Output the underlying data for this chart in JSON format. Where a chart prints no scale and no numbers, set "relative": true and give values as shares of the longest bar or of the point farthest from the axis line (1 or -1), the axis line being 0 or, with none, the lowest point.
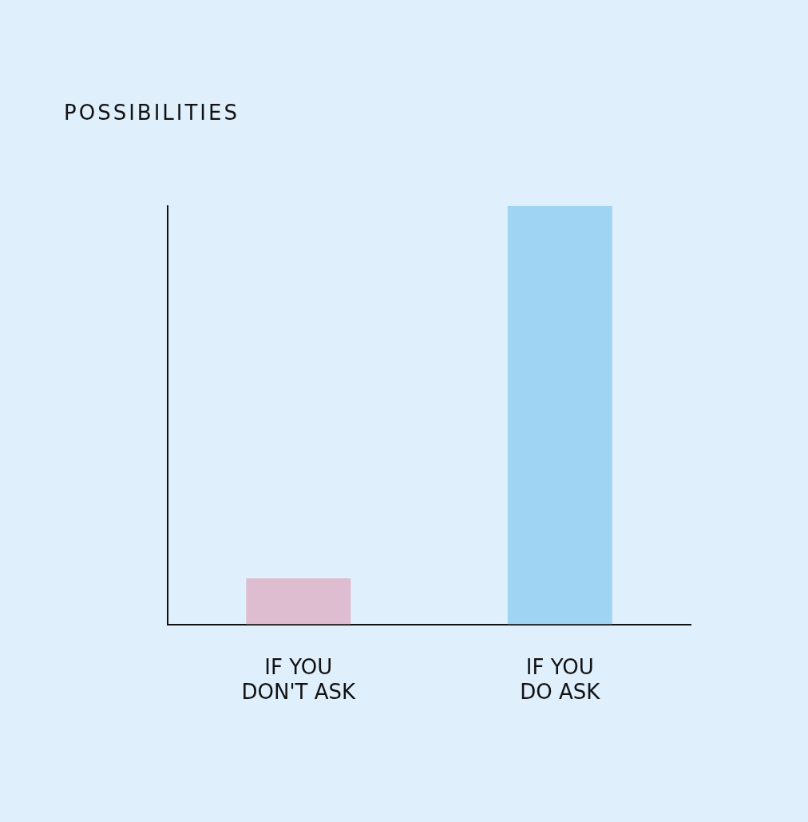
{
  "chart_data": {
    "type": "bar",
    "annotations": [
      "POSSIBILITIES"
    ],
    "relative": true,
    "categories": [
      "IF YOU DON'T ASK",
      "IF YOU DO ASK"
    ],
    "values": [
      0.11,
      1
    ],
    "colors": [
      "#dfbdd0",
      "#a0d4f3"
    ],
    "grid": false
  }
}
